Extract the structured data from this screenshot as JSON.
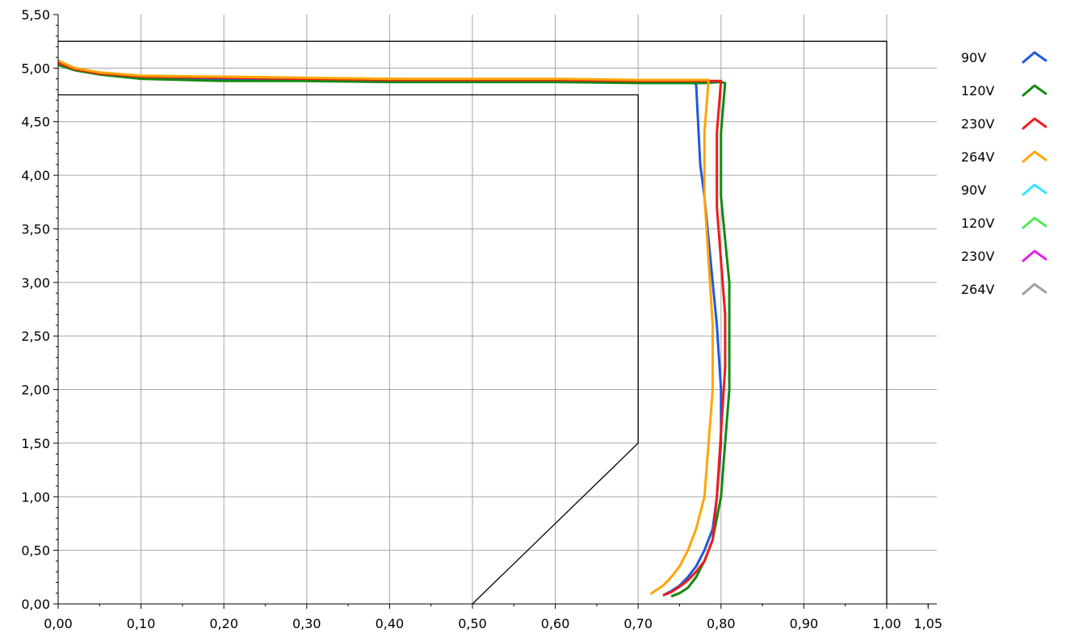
{
  "chart_data": {
    "type": "line",
    "title": "",
    "xlabel": "",
    "ylabel": "",
    "xlim": [
      0,
      1.05
    ],
    "ylim": [
      0,
      5.5
    ],
    "x_ticks": [
      "0,00",
      "0,10",
      "0,20",
      "0,30",
      "0,40",
      "0,50",
      "0,60",
      "0,70",
      "0,80",
      "0,90",
      "1,00",
      "1,05"
    ],
    "y_ticks": [
      "0,00",
      "0,50",
      "1,00",
      "1,50",
      "2,00",
      "2,50",
      "3,00",
      "3,50",
      "4,00",
      "4,50",
      "5,00",
      "5,50"
    ],
    "grid": true,
    "legend_position": "right",
    "series": [
      {
        "name": "90V",
        "color": "#1f57e0",
        "x": [
          0.0,
          0.02,
          0.05,
          0.1,
          0.2,
          0.3,
          0.4,
          0.5,
          0.6,
          0.7,
          0.76,
          0.77,
          0.775,
          0.78,
          0.785,
          0.79,
          0.795,
          0.8,
          0.8,
          0.795,
          0.79,
          0.78,
          0.77,
          0.76,
          0.75,
          0.74,
          0.73
        ],
        "y": [
          5.06,
          5.0,
          4.95,
          4.92,
          4.9,
          4.9,
          4.9,
          4.89,
          4.89,
          4.89,
          4.89,
          4.85,
          4.1,
          3.8,
          3.4,
          3.0,
          2.6,
          2.0,
          1.5,
          1.0,
          0.7,
          0.5,
          0.35,
          0.25,
          0.17,
          0.12,
          0.08
        ]
      },
      {
        "name": "120V",
        "color": "#128a12",
        "x": [
          0.0,
          0.02,
          0.05,
          0.1,
          0.2,
          0.3,
          0.4,
          0.5,
          0.6,
          0.7,
          0.78,
          0.8,
          0.805,
          0.8,
          0.8,
          0.805,
          0.81,
          0.81,
          0.81,
          0.805,
          0.8,
          0.79,
          0.78,
          0.77,
          0.76,
          0.75,
          0.74
        ],
        "y": [
          5.03,
          4.98,
          4.94,
          4.9,
          4.88,
          4.88,
          4.87,
          4.87,
          4.87,
          4.86,
          4.86,
          4.87,
          4.86,
          4.4,
          3.8,
          3.4,
          3.0,
          2.5,
          2.0,
          1.5,
          1.0,
          0.6,
          0.4,
          0.25,
          0.15,
          0.1,
          0.07
        ]
      },
      {
        "name": "230V",
        "color": "#ee1c1c",
        "x": [
          0.0,
          0.02,
          0.05,
          0.1,
          0.2,
          0.3,
          0.4,
          0.5,
          0.6,
          0.7,
          0.78,
          0.8,
          0.795,
          0.795,
          0.8,
          0.805,
          0.805,
          0.8,
          0.795,
          0.79,
          0.78,
          0.77,
          0.76,
          0.75,
          0.74,
          0.73
        ],
        "y": [
          5.05,
          4.99,
          4.95,
          4.92,
          4.91,
          4.9,
          4.89,
          4.89,
          4.89,
          4.88,
          4.88,
          4.88,
          4.4,
          3.7,
          3.2,
          2.7,
          2.2,
          1.6,
          1.0,
          0.6,
          0.4,
          0.3,
          0.22,
          0.16,
          0.11,
          0.08
        ]
      },
      {
        "name": "264V",
        "color": "#ffa500",
        "x": [
          0.0,
          0.02,
          0.05,
          0.1,
          0.2,
          0.3,
          0.4,
          0.5,
          0.6,
          0.7,
          0.77,
          0.785,
          0.78,
          0.78,
          0.785,
          0.79,
          0.79,
          0.785,
          0.78,
          0.77,
          0.76,
          0.75,
          0.74,
          0.73,
          0.72,
          0.715
        ],
        "y": [
          5.07,
          5.0,
          4.96,
          4.93,
          4.92,
          4.91,
          4.9,
          4.9,
          4.9,
          4.89,
          4.89,
          4.89,
          4.4,
          3.8,
          3.2,
          2.6,
          2.0,
          1.5,
          1.0,
          0.7,
          0.5,
          0.35,
          0.25,
          0.17,
          0.12,
          0.09
        ]
      },
      {
        "name": "90V",
        "color": "#33e6ff",
        "x": [],
        "y": []
      },
      {
        "name": "120V",
        "color": "#4cea54",
        "x": [],
        "y": []
      },
      {
        "name": "230V",
        "color": "#e51ee5",
        "x": [],
        "y": []
      },
      {
        "name": "264V",
        "color": "#a0a0a0",
        "x": [],
        "y": []
      }
    ],
    "limit_lines": [
      {
        "color": "#000000",
        "x": [
          0.0,
          1.0,
          1.0
        ],
        "y": [
          5.25,
          5.25,
          0.0
        ]
      },
      {
        "color": "#000000",
        "x": [
          0.0,
          0.7,
          0.7,
          0.5
        ],
        "y": [
          4.75,
          4.75,
          1.5,
          0.0
        ]
      }
    ]
  }
}
